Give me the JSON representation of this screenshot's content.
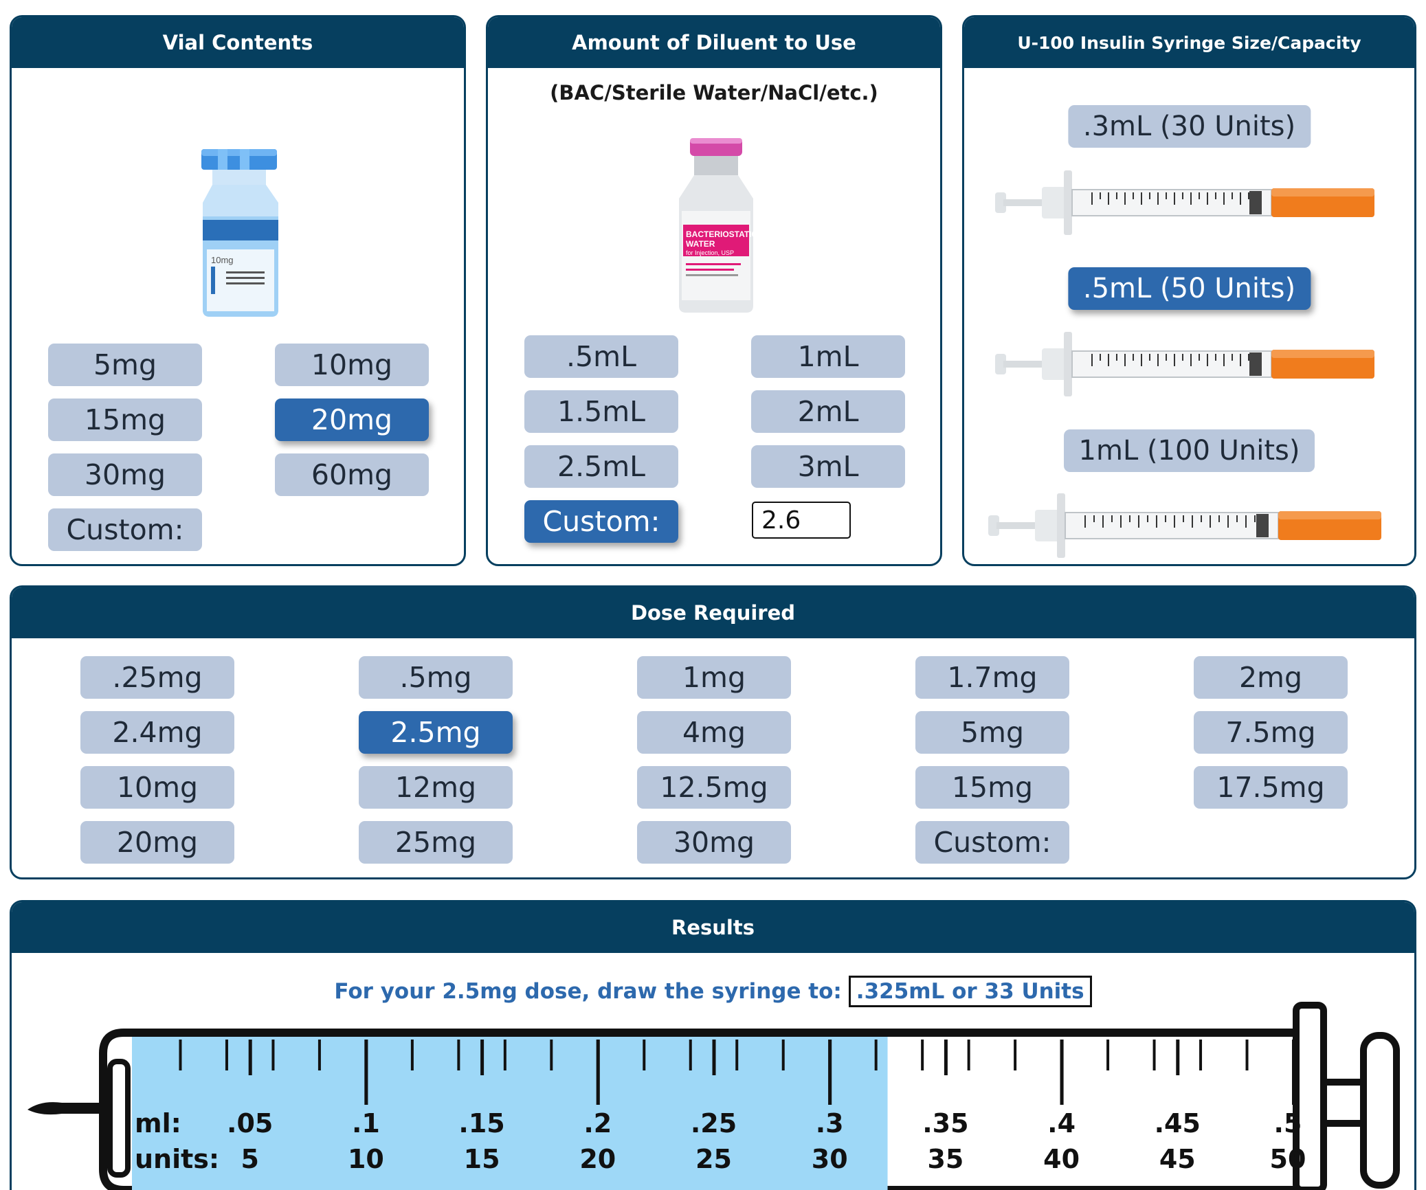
{
  "vial_panel": {
    "title": "Vial Contents",
    "vial_label": "10mg",
    "options": [
      "5mg",
      "10mg",
      "15mg",
      "20mg",
      "30mg",
      "60mg",
      "Custom:"
    ],
    "selected": "20mg"
  },
  "diluent_panel": {
    "title": "Amount of Diluent to Use",
    "subtitle": "(BAC/Sterile Water/NaCl/etc.)",
    "bottle_label": [
      "BACTERIOSTATIC",
      "WATER",
      "for Injection, USP"
    ],
    "options": [
      ".5mL",
      "1mL",
      "1.5mL",
      "2mL",
      "2.5mL",
      "3mL",
      "Custom:"
    ],
    "selected": "Custom:",
    "custom_value": "2.6"
  },
  "syringe_panel": {
    "title": "U-100 Insulin Syringe Size/Capacity",
    "options": [
      ".3mL (30 Units)",
      ".5mL (50 Units)",
      "1mL (100 Units)"
    ],
    "selected": ".5mL (50 Units)"
  },
  "dose_panel": {
    "title": "Dose Required",
    "options": [
      ".25mg",
      ".5mg",
      "1mg",
      "1.7mg",
      "2mg",
      "2.4mg",
      "2.5mg",
      "4mg",
      "5mg",
      "7.5mg",
      "10mg",
      "12mg",
      "12.5mg",
      "15mg",
      "17.5mg",
      "20mg",
      "25mg",
      "30mg",
      "Custom:"
    ],
    "selected": "2.5mg"
  },
  "results_panel": {
    "title": "Results",
    "prefix": "For your 2.5mg dose, draw the syringe to:",
    "value": ".325mL or 33 Units",
    "fill_units": 32.5,
    "scale": {
      "ml_label": "ml:",
      "units_label": "units:",
      "ml_ticks": [
        ".05",
        ".1",
        ".15",
        ".2",
        ".25",
        ".3",
        ".35",
        ".4",
        ".45",
        ".5"
      ],
      "unit_ticks": [
        "5",
        "10",
        "15",
        "20",
        "25",
        "30",
        "35",
        "40",
        "45",
        "50"
      ],
      "max_units": 50
    }
  },
  "colors": {
    "header": "#063f5f",
    "button": "#b9c7dc",
    "button_selected": "#2d69ad",
    "fill": "#9ed8f7",
    "needle_hub": "#f07c1d"
  }
}
